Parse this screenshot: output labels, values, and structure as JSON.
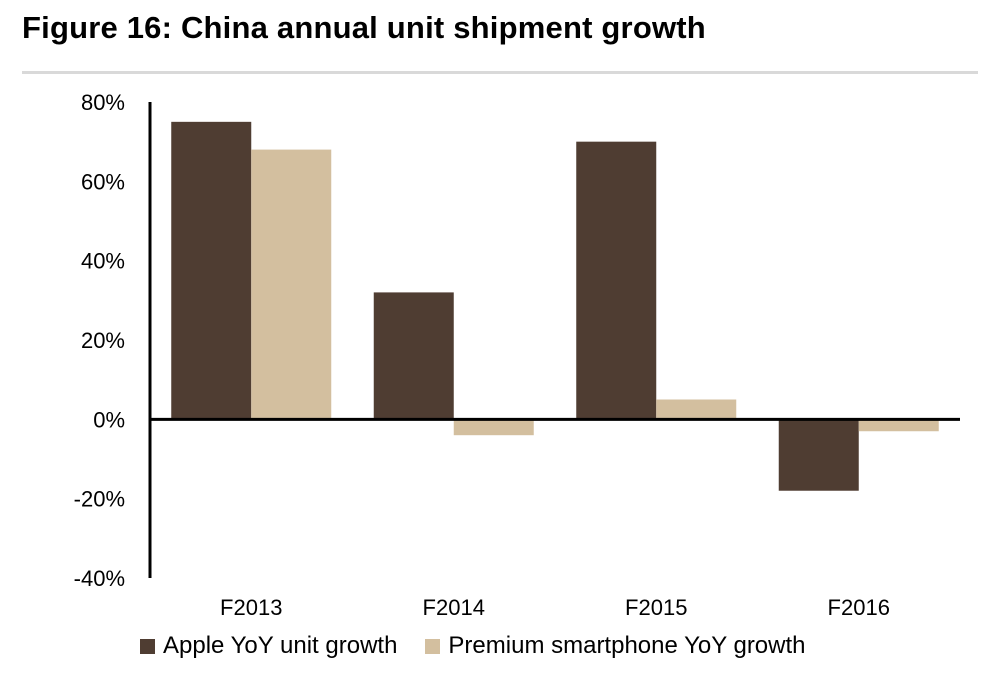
{
  "chart_data": {
    "type": "bar",
    "title": "Figure 16: China annual unit shipment growth",
    "categories": [
      "F2013",
      "F2014",
      "F2015",
      "F2016"
    ],
    "series": [
      {
        "name": "Apple YoY unit growth",
        "color": "#4f3d32",
        "values": [
          75,
          32,
          70,
          -18
        ]
      },
      {
        "name": "Premium smartphone YoY growth",
        "color": "#d3bf9f",
        "values": [
          68,
          -4,
          5,
          -3
        ]
      }
    ],
    "ylim": [
      -40,
      80
    ],
    "yticks": [
      "80%",
      "60%",
      "40%",
      "20%",
      "0%",
      "-20%",
      "-40%"
    ],
    "ytick_values": [
      80,
      60,
      40,
      20,
      0,
      -20,
      -40
    ],
    "grid": false,
    "legend_position": "bottom-left"
  }
}
